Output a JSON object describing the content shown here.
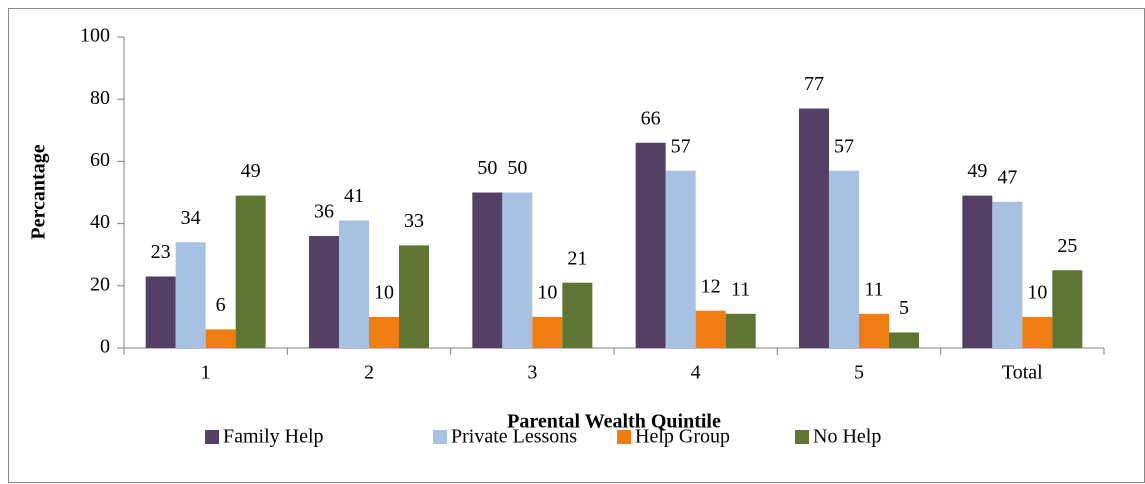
{
  "chart_data": {
    "type": "bar",
    "x_label": "Parental Wealth Quintile",
    "y_label": "Percantage",
    "categories": [
      "1",
      "2",
      "3",
      "4",
      "5",
      "Total"
    ],
    "series": [
      {
        "name": "Family Help",
        "color": "#544064",
        "values": [
          23,
          36,
          50,
          66,
          77,
          49
        ]
      },
      {
        "name": "Private Lessons",
        "color": "#a6c1e2",
        "values": [
          34,
          41,
          50,
          57,
          57,
          47
        ]
      },
      {
        "name": "Help Group",
        "color": "#f07d11",
        "values": [
          6,
          10,
          10,
          12,
          11,
          10
        ]
      },
      {
        "name": "No Help",
        "color": "#5e7534",
        "values": [
          49,
          33,
          21,
          11,
          5,
          25
        ]
      }
    ],
    "ylim": [
      0,
      100
    ],
    "yticks": [
      0,
      20,
      40,
      60,
      80,
      100
    ],
    "grid": false,
    "legend": "bottom"
  }
}
